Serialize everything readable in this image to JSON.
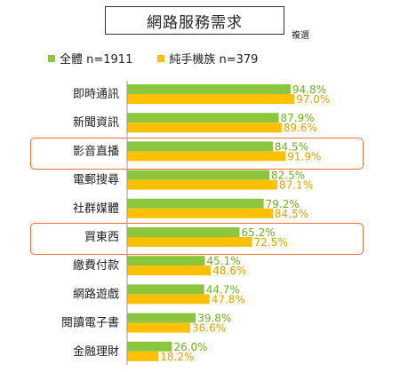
{
  "title": "網路服務需求",
  "subtitle": "複選",
  "colors": {
    "all": "#8CC63F",
    "pure_mobile": "#FFC000",
    "all_label": "#6DAF1F",
    "pure_mobile_label": "#E8A000",
    "highlight": "#E8743B"
  },
  "chart_data": {
    "type": "bar",
    "orientation": "horizontal",
    "unit": "%",
    "categories": [
      "即時通訊",
      "新聞資訊",
      "影音直播",
      "電郵搜尋",
      "社群媒體",
      "買東西",
      "繳費付款",
      "網路遊戲",
      "閱讀電子書",
      "金融理財"
    ],
    "series": [
      {
        "name": "全體 n=1911",
        "values": [
          94.8,
          87.9,
          84.5,
          82.5,
          79.2,
          65.2,
          45.1,
          44.7,
          39.8,
          26.0
        ]
      },
      {
        "name": "純手機族 n=379",
        "values": [
          97.0,
          89.6,
          91.9,
          87.1,
          84.5,
          72.5,
          48.6,
          47.8,
          36.6,
          18.2
        ]
      }
    ],
    "highlighted_categories": [
      "影音直播",
      "買東西"
    ],
    "xlim": [
      0,
      100
    ],
    "legend_position": "top-left",
    "grid": false
  }
}
